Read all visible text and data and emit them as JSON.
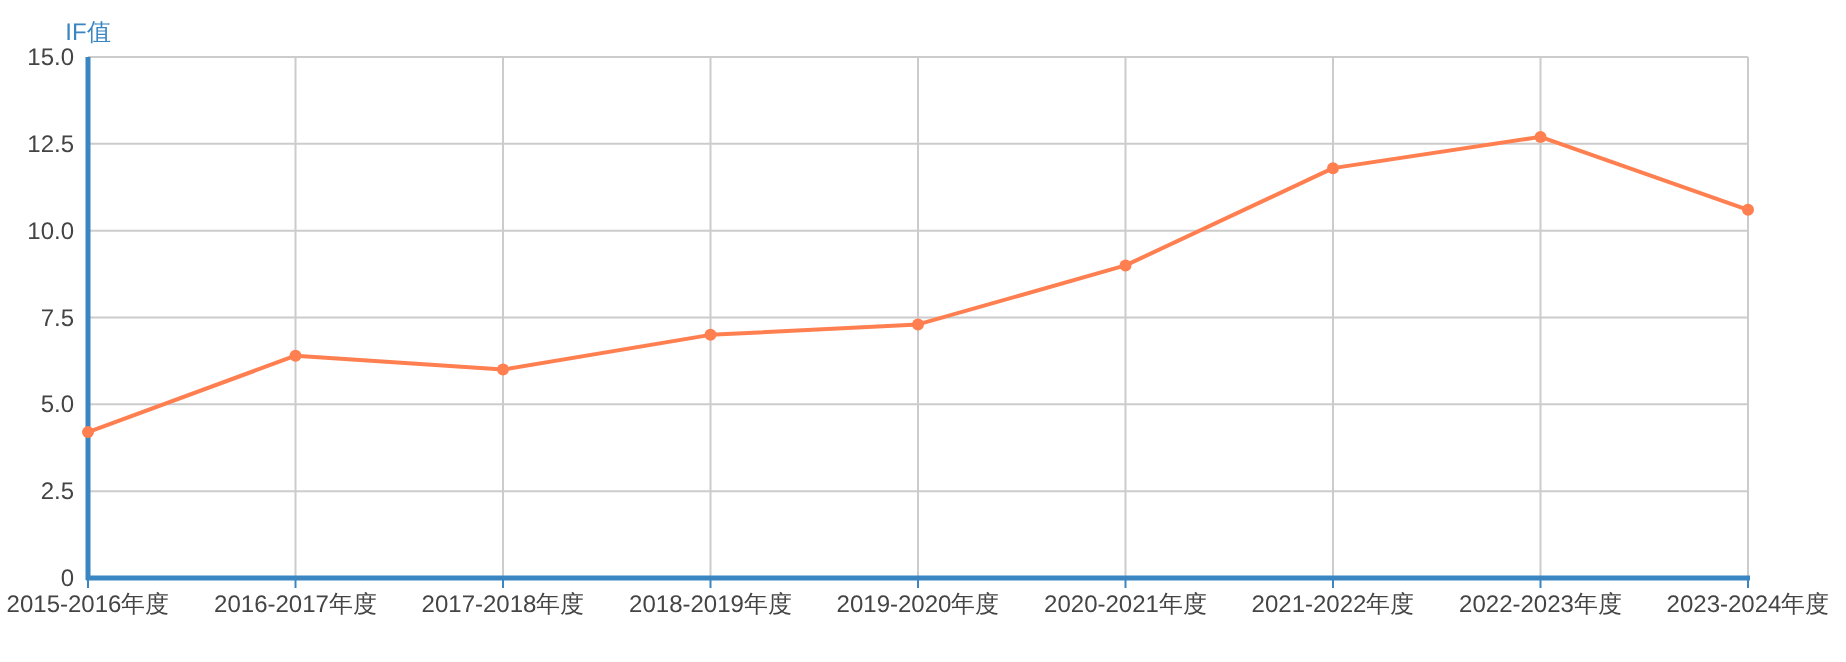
{
  "chart_data": {
    "type": "line",
    "ylabel": "IF值",
    "categories": [
      "2015-2016年度",
      "2016-2017年度",
      "2017-2018年度",
      "2018-2019年度",
      "2019-2020年度",
      "2020-2021年度",
      "2021-2022年度",
      "2022-2023年度",
      "2023-2024年度"
    ],
    "series": [
      {
        "color": "#ff7f50",
        "values": [
          4.2,
          6.4,
          6.0,
          7.0,
          7.3,
          9.0,
          11.8,
          12.7,
          10.6
        ]
      }
    ],
    "ylim": [
      0,
      15
    ],
    "yticks": [
      0,
      2.5,
      {
        "value": 5,
        "label": "5.0"
      },
      7.5,
      {
        "value": 10,
        "label": "10.0"
      },
      12.5,
      {
        "value": 15,
        "label": "15.0"
      }
    ],
    "grid": true,
    "marker": "circle",
    "line_style": "solid"
  }
}
